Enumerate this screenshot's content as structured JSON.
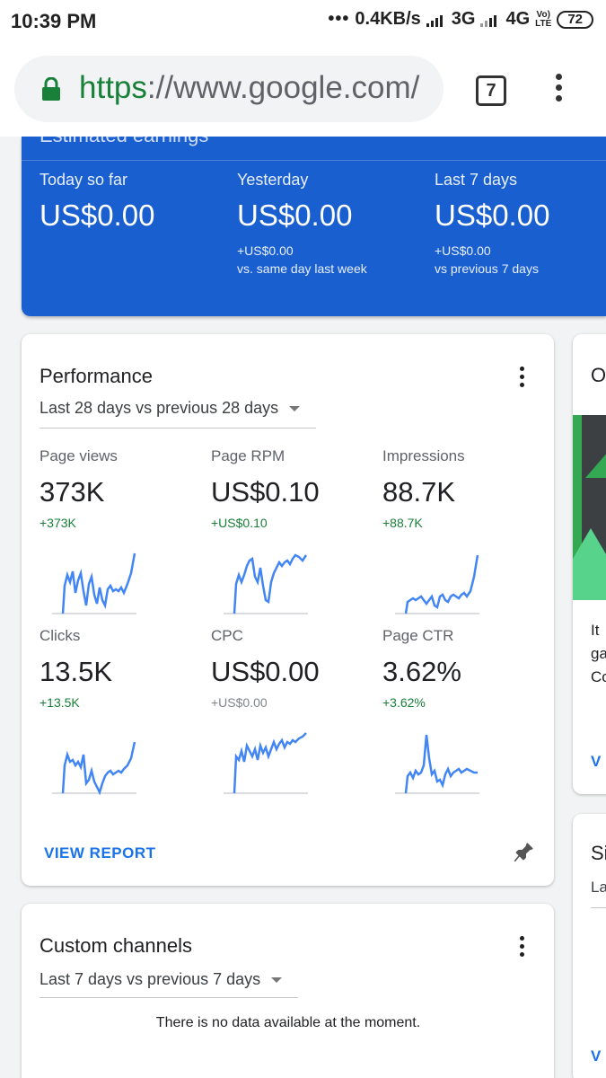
{
  "status_bar": {
    "time": "10:39 PM",
    "dots": "•••",
    "speed": "0.4KB/s",
    "net1": "3G",
    "net2": "4G",
    "volte_top": "Vo)",
    "volte_bottom": "LTE",
    "battery": "72"
  },
  "browser": {
    "url_scheme": "https",
    "url_rest": "://www.google.com/",
    "tab_count": "7"
  },
  "earnings": {
    "title": "Estimated earnings",
    "columns": [
      {
        "label": "Today so far",
        "value": "US$0.00",
        "delta": "",
        "compare": ""
      },
      {
        "label": "Yesterday",
        "value": "US$0.00",
        "delta": "+US$0.00",
        "compare": "vs. same day last week"
      },
      {
        "label": "Last 7 days",
        "value": "US$0.00",
        "delta": "+US$0.00",
        "compare": "vs previous 7 days"
      }
    ]
  },
  "performance": {
    "title": "Performance",
    "range": "Last 28 days vs previous 28 days",
    "metrics": [
      {
        "label": "Page views",
        "value": "373K",
        "delta": "+373K"
      },
      {
        "label": "Page RPM",
        "value": "US$0.10",
        "delta": "+US$0.10"
      },
      {
        "label": "Impressions",
        "value": "88.7K",
        "delta": "+88.7K"
      },
      {
        "label": "Clicks",
        "value": "13.5K",
        "delta": "+13.5K"
      },
      {
        "label": "CPC",
        "value": "US$0.00",
        "delta": "+US$0.00"
      },
      {
        "label": "Page CTR",
        "value": "3.62%",
        "delta": "+3.62%"
      }
    ],
    "view_report": "VIEW REPORT"
  },
  "custom_channels": {
    "title": "Custom channels",
    "range": "Last 7 days vs previous 7 days",
    "empty_message": "There is no data available at the moment."
  },
  "peek_cards": {
    "top_title": "O",
    "top_lines": [
      "It",
      "ga",
      "Co"
    ],
    "top_link": "V",
    "bottom_title": "Si",
    "bottom_sub": "La",
    "bottom_link": "V"
  },
  "colors": {
    "brand_blue": "#1a5fcf",
    "positive_green": "#188038",
    "link_blue": "#1a73e8",
    "spark_blue": "#4285f4"
  }
}
